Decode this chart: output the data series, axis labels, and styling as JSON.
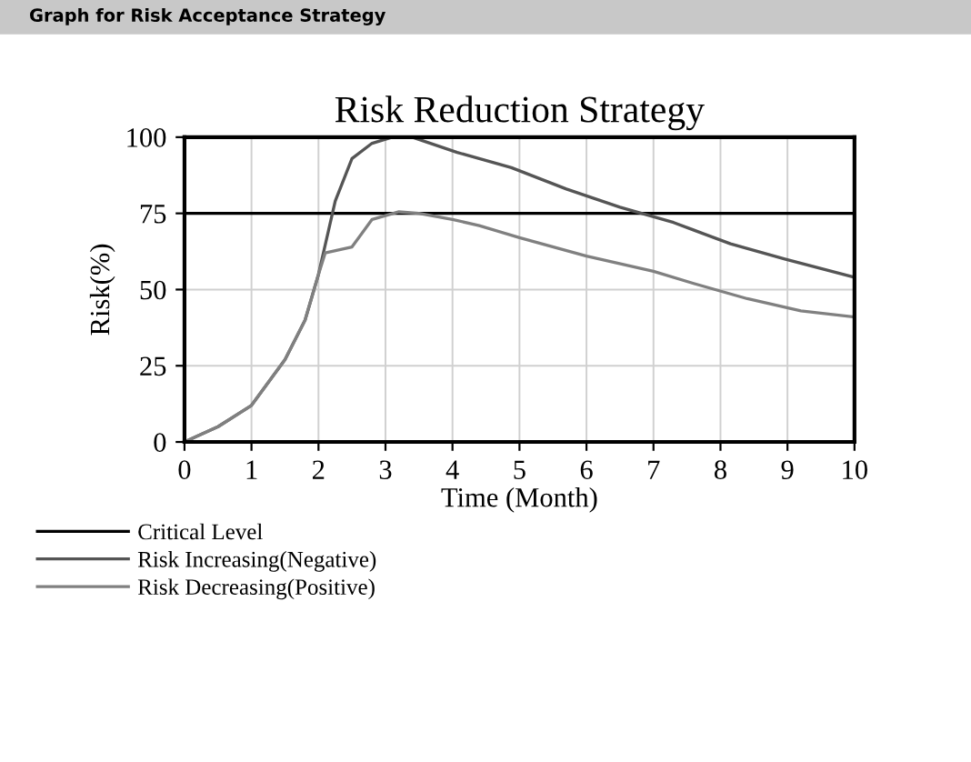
{
  "chart_data": {
    "type": "line",
    "title": "Risk Reduction Strategy",
    "xlabel": "Time (Month)",
    "ylabel": "Risk(%)",
    "annotations": [
      "Graph for Risk Acceptance Strategy"
    ],
    "xlim": [
      0,
      10
    ],
    "xticks": [
      0,
      1,
      2,
      3,
      4,
      5,
      6,
      7,
      8,
      9,
      10
    ],
    "ylim": [
      0,
      100
    ],
    "yticks": [
      0,
      25,
      50,
      75,
      100
    ],
    "grid": true,
    "legend": "bottom",
    "line_style": "solid",
    "marker": "none",
    "series": [
      {
        "name": "Critical Level",
        "color": "#000000",
        "x": [
          0,
          10
        ],
        "values": [
          75,
          75
        ]
      },
      {
        "name": "Risk Increasing(Negative)",
        "color": "#555555",
        "x": [
          0,
          0.2,
          0.5,
          1,
          1.5,
          1.8,
          2,
          2.25,
          2.5,
          2.8,
          3.1,
          3.4,
          4.07,
          4.88,
          5.7,
          6.5,
          7.3,
          8.15,
          8.96,
          10
        ],
        "values": [
          0,
          2,
          5,
          12,
          27,
          40,
          55,
          79,
          93,
          98,
          100,
          100,
          95,
          90,
          83,
          77,
          72,
          65,
          60,
          54
        ]
      },
      {
        "name": "Risk Decreasing(Positive)",
        "color": "#808080",
        "x": [
          0,
          0.2,
          0.5,
          1,
          1.5,
          1.8,
          2,
          2.1,
          2.5,
          2.8,
          3.2,
          3.5,
          4,
          4.4,
          5,
          6,
          7,
          7.6,
          8.4,
          9.2,
          10
        ],
        "values": [
          0,
          2,
          5,
          12,
          27,
          40,
          55,
          62,
          64,
          73,
          75.5,
          75,
          73,
          71,
          67,
          61,
          56,
          52,
          47,
          43,
          41
        ]
      }
    ]
  }
}
